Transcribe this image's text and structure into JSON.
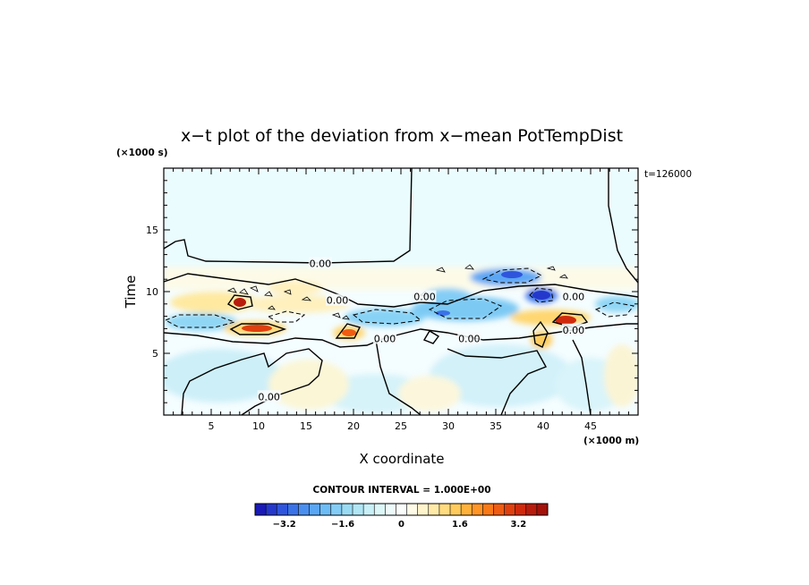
{
  "chart_data": {
    "type": "heatmap",
    "title": "x−t plot of the deviation from x−mean PotTempDist",
    "xlabel": "X coordinate",
    "ylabel": "Time",
    "x_unit": "(×1000 m)",
    "y_unit": "(×1000 s)",
    "time_stamp": "t=126000",
    "xlim": [
      0,
      50
    ],
    "ylim": [
      0,
      20
    ],
    "x_ticks": [
      5,
      10,
      15,
      20,
      25,
      30,
      35,
      40,
      45
    ],
    "y_ticks": [
      5,
      10,
      15
    ],
    "contour_interval": "CONTOUR INTERVAL = 1.000E+00",
    "contour_labels": [
      {
        "text": "0.00",
        "x": 16.5,
        "y": 12.3
      },
      {
        "text": "0.00",
        "x": 18.3,
        "y": 9.3
      },
      {
        "text": "0.00",
        "x": 27.5,
        "y": 9.6
      },
      {
        "text": "0.00",
        "x": 43.2,
        "y": 9.6
      },
      {
        "text": "0.00",
        "x": 23.3,
        "y": 6.2
      },
      {
        "text": "0.00",
        "x": 32.2,
        "y": 6.2
      },
      {
        "text": "0.00",
        "x": 43.2,
        "y": 6.9
      },
      {
        "text": "0.00",
        "x": 11.1,
        "y": 1.5
      }
    ],
    "colorbar": {
      "vmin": -4,
      "vmax": 4,
      "step": 0.4,
      "tick_values": [
        -3.2,
        -1.6,
        0,
        1.6,
        3.2
      ],
      "tick_labels": [
        "−3.2",
        "−1.6",
        "0",
        "1.6",
        "3.2"
      ],
      "colors": [
        "#1a1ab8",
        "#2438cc",
        "#2f55dd",
        "#3a72e8",
        "#4a8ff0",
        "#5aa6f4",
        "#6dbcf6",
        "#84cdf6",
        "#9adbf4",
        "#b1e6f4",
        "#c8f0f6",
        "#ddf7f8",
        "#eefbfb",
        "#fbfdfd",
        "#fffbe8",
        "#fff4cc",
        "#ffeaa8",
        "#ffdc80",
        "#ffcb5c",
        "#ffb23c",
        "#ff9626",
        "#fa7a18",
        "#ef5c12",
        "#e0400e",
        "#d02a0c",
        "#b81c0c",
        "#a4120a"
      ]
    }
  }
}
